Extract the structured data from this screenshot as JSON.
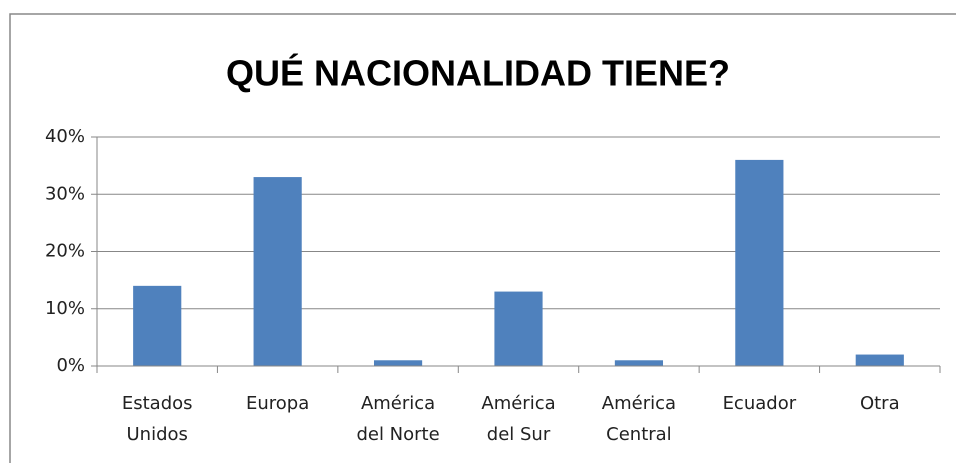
{
  "chart_data": {
    "type": "bar",
    "title": "QUÉ NACIONALIDAD TIENE?",
    "categories": [
      "Estados\nUnidos",
      "Europa",
      "América\ndel Norte",
      "América\ndel Sur",
      "América\nCentral",
      "Ecuador",
      "Otra"
    ],
    "values": [
      14,
      33,
      1,
      13,
      1,
      36,
      2
    ],
    "color": "#4f81bd",
    "ylim": [
      0,
      40
    ],
    "yticks": [
      {
        "value": 0,
        "label": "0%"
      },
      {
        "value": 10,
        "label": "10%"
      },
      {
        "value": 20,
        "label": "20%"
      },
      {
        "value": 30,
        "label": "30%"
      },
      {
        "value": 40,
        "label": "40%"
      }
    ],
    "grid": true
  }
}
